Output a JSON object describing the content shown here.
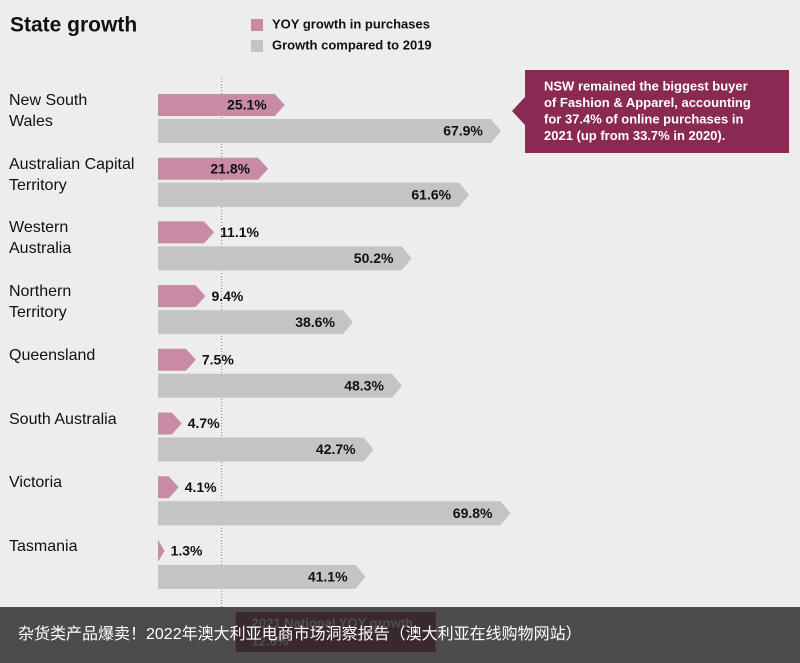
{
  "chart_data": {
    "type": "arrow-bar",
    "title": "State growth",
    "categories": [
      "New South\nWales",
      "Australian Capital\nTerritory",
      "Western\nAustralia",
      "Northern\nTerritory",
      "Queensland",
      "South Australia",
      "Victoria",
      "Tasmania"
    ],
    "series": [
      {
        "name": "YOY growth in purchases",
        "color": "#c98aa5",
        "values": [
          25.1,
          21.8,
          11.1,
          9.4,
          7.5,
          4.7,
          4.1,
          1.3
        ],
        "value_labels": [
          "25.1%",
          "21.8%",
          "11.1%",
          "9.4%",
          "7.5%",
          "4.7%",
          "4.1%",
          "1.3%"
        ]
      },
      {
        "name": "Growth compared to 2019",
        "color": "#c4c4c4",
        "values": [
          67.9,
          61.6,
          50.2,
          38.6,
          48.3,
          42.7,
          69.8,
          41.1
        ],
        "value_labels": [
          "67.9%",
          "61.6%",
          "50.2%",
          "38.6%",
          "48.3%",
          "42.7%",
          "69.8%",
          "41.1%"
        ]
      }
    ],
    "reference": {
      "label": "2021 National YOY growth",
      "value": 12.6,
      "value_label": "12.6%"
    },
    "annotation": [
      "NSW remained the biggest buyer",
      "of Fashion & Apparel, accounting",
      "for 37.4% of online purchases in",
      "2021 (up from 33.7% in 2020)."
    ],
    "annotation_color": "#8a2a52"
  },
  "caption": "杂货类产品爆卖！2022年澳大利亚电商市场洞察报告（澳大利亚在线购物网站）"
}
